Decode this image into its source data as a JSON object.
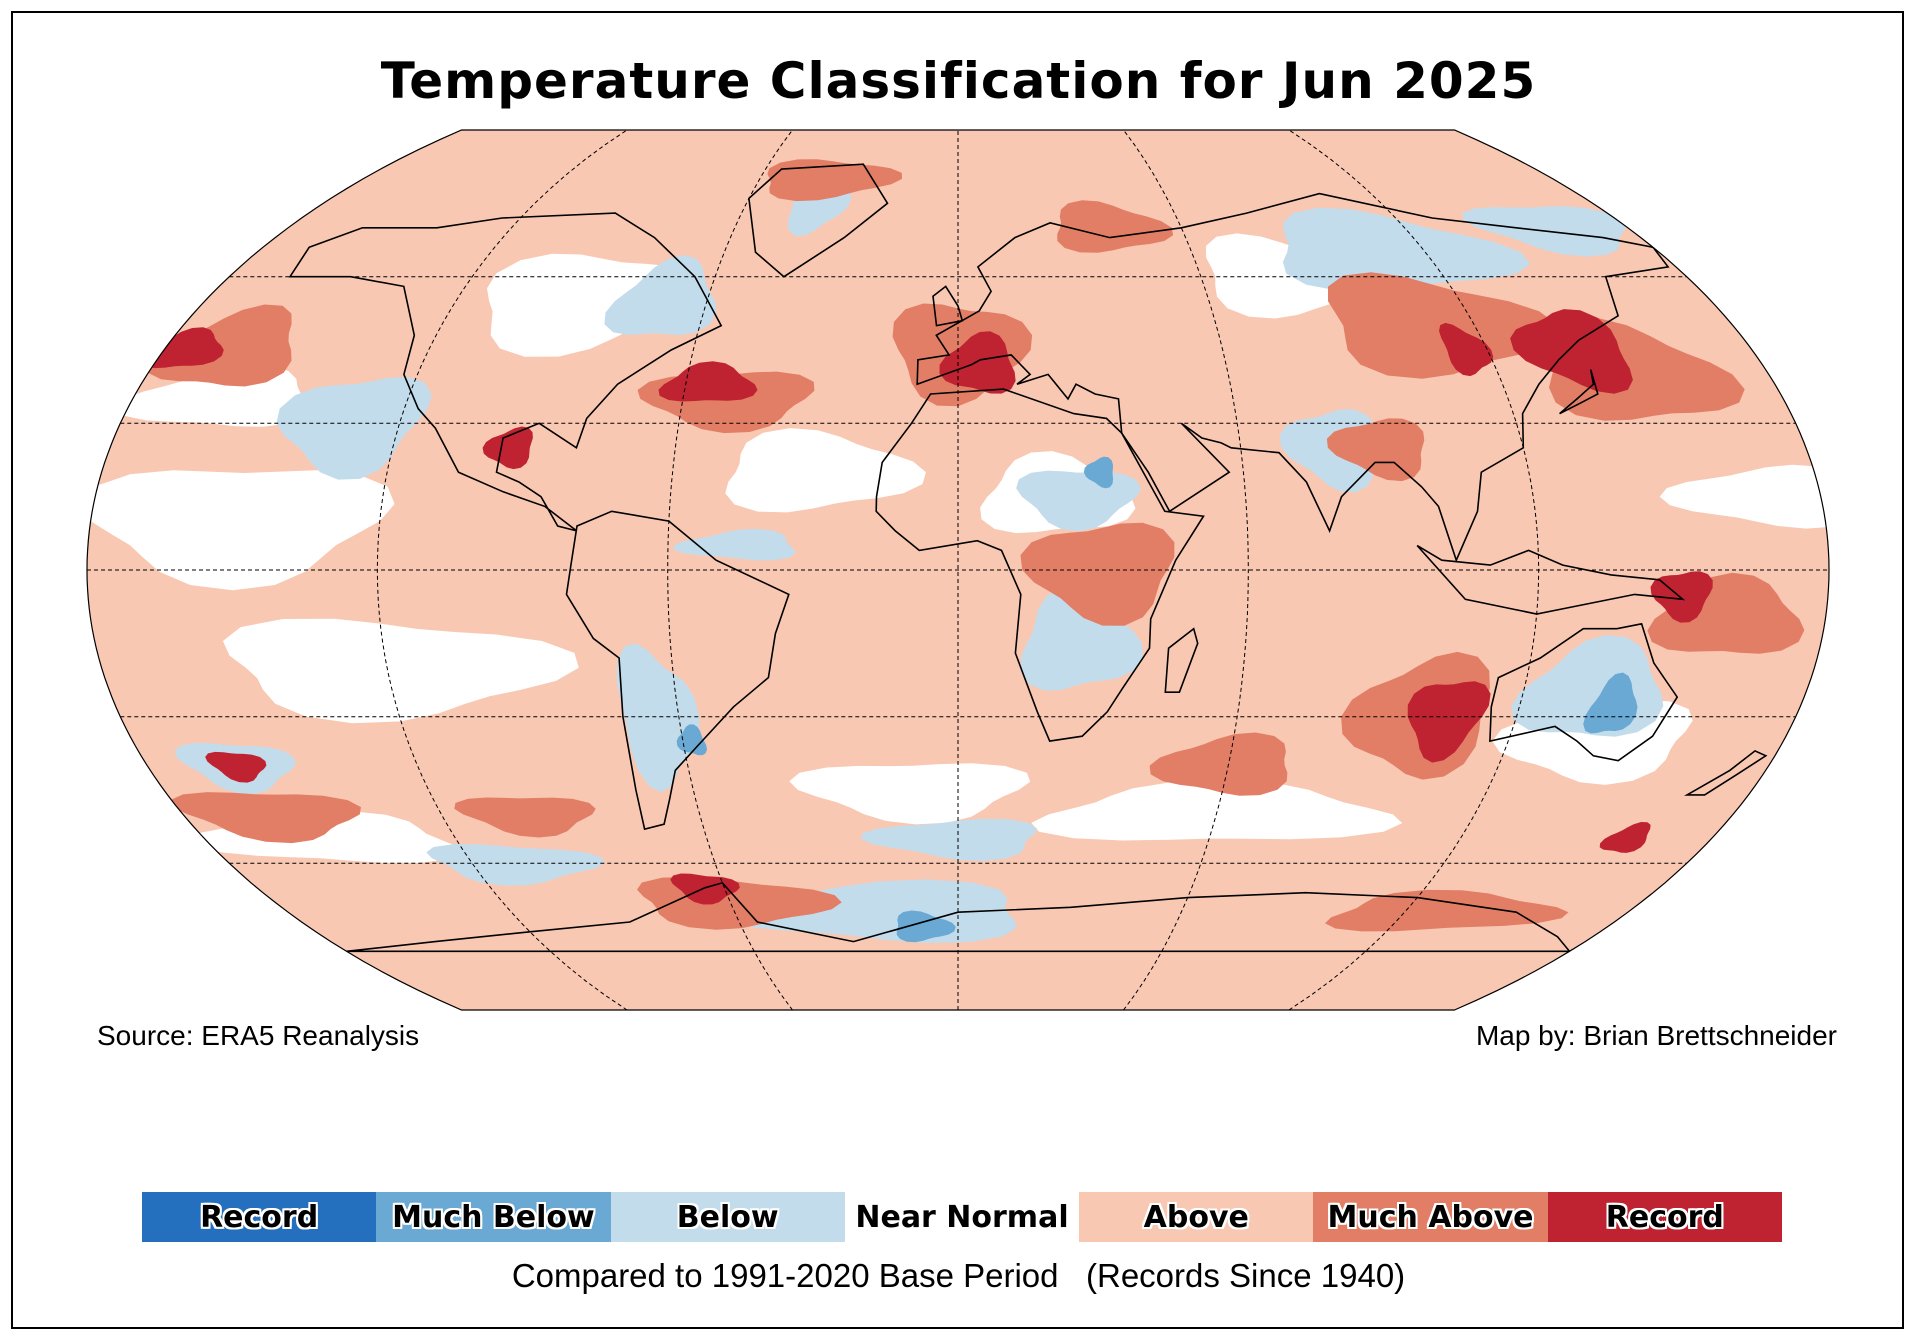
{
  "title": "Temperature Classification for Jun 2025",
  "source": "Source: ERA5 Reanalysis",
  "credit": "Map by: Brian Brettschneider",
  "legend": {
    "items": [
      {
        "label": "Record",
        "color": "#2470be"
      },
      {
        "label": "Much Below",
        "color": "#6aa9d3"
      },
      {
        "label": "Below",
        "color": "#c3dcec"
      },
      {
        "label": "Near Normal",
        "color": "#ffffff"
      },
      {
        "label": "Above",
        "color": "#f8c8b3"
      },
      {
        "label": "Much Above",
        "color": "#e27e66"
      },
      {
        "label": "Record",
        "color": "#bf2230"
      }
    ],
    "caption": "Compared to 1991-2020 Base Period   (Records Since 1940)"
  },
  "colors": {
    "record_cold": "#2470be",
    "much_below": "#6aa9d3",
    "below": "#c3dcec",
    "near_normal": "#ffffff",
    "above": "#f8c8b3",
    "much_above": "#e27e66",
    "record_warm": "#bf2230"
  }
}
